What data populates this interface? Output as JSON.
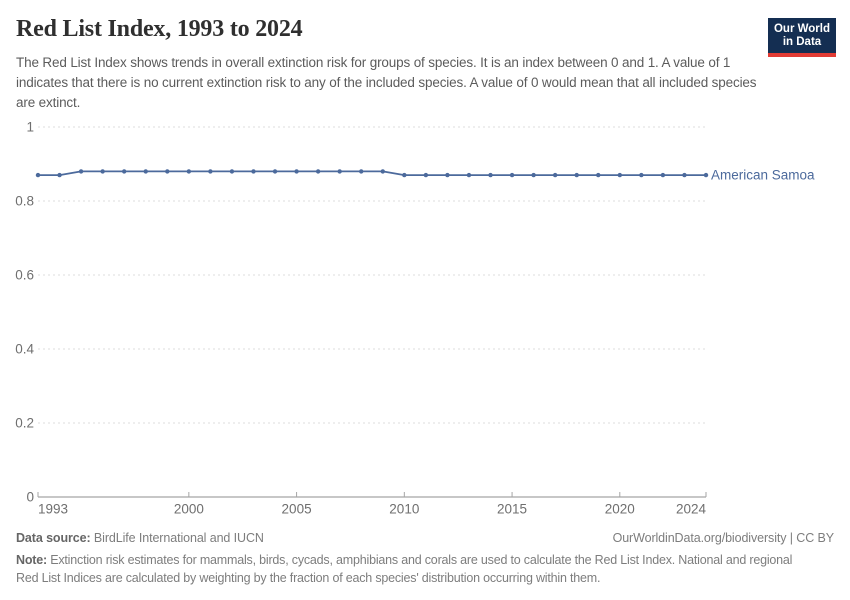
{
  "header": {
    "title": "Red List Index, 1993 to 2024",
    "subtitle": "The Red List Index shows trends in overall extinction risk for groups of species. It is an index between 0 and 1. A value of 1 indicates that there is no current extinction risk to any of the included species. A value of 0 would mean that all included species are extinct.",
    "logo": {
      "line1": "Our World",
      "line2": "in Data"
    }
  },
  "chart_data": {
    "type": "line",
    "title": "Red List Index, 1993 to 2024",
    "xlabel": "",
    "ylabel": "",
    "xlim": [
      1993,
      2024
    ],
    "ylim": [
      0,
      1
    ],
    "grid": true,
    "gridline_style": "dashed",
    "legend_position": "end-of-line-label",
    "x_ticks": [
      1993,
      2000,
      2005,
      2010,
      2015,
      2020,
      2024
    ],
    "y_ticks": [
      0,
      0.2,
      0.4,
      0.6,
      0.8,
      1
    ],
    "y_tick_labels": [
      "0",
      "0.2",
      "0.4",
      "0.6",
      "0.8",
      "1"
    ],
    "x": [
      1993,
      1994,
      1995,
      1996,
      1997,
      1998,
      1999,
      2000,
      2001,
      2002,
      2003,
      2004,
      2005,
      2006,
      2007,
      2008,
      2009,
      2010,
      2011,
      2012,
      2013,
      2014,
      2015,
      2016,
      2017,
      2018,
      2019,
      2020,
      2021,
      2022,
      2023,
      2024
    ],
    "series": [
      {
        "name": "American Samoa",
        "color": "#4C6A9C",
        "values": [
          0.87,
          0.87,
          0.88,
          0.88,
          0.88,
          0.88,
          0.88,
          0.88,
          0.88,
          0.88,
          0.88,
          0.88,
          0.88,
          0.88,
          0.88,
          0.88,
          0.88,
          0.87,
          0.87,
          0.87,
          0.87,
          0.87,
          0.87,
          0.87,
          0.87,
          0.87,
          0.87,
          0.87,
          0.87,
          0.87,
          0.87,
          0.87
        ]
      }
    ]
  },
  "footer": {
    "data_source_label": "Data source:",
    "data_source": " BirdLife International and IUCN",
    "origin": "OurWorldinData.org/biodiversity | CC BY",
    "note_label": "Note:",
    "note": " Extinction risk estimates for mammals, birds, cycads, amphibians and corals are used to calculate the Red List Index. National and regional Red List Indices are calculated by weighting by the fraction of each species' distribution occurring within them."
  },
  "colors": {
    "series_line": "#4C6A9C",
    "logo_navy": "#142e52",
    "logo_red": "#e23b34",
    "gridline": "#dcdcdc",
    "axis": "#8f8f8f",
    "text_gray": "#6f6f6f"
  }
}
